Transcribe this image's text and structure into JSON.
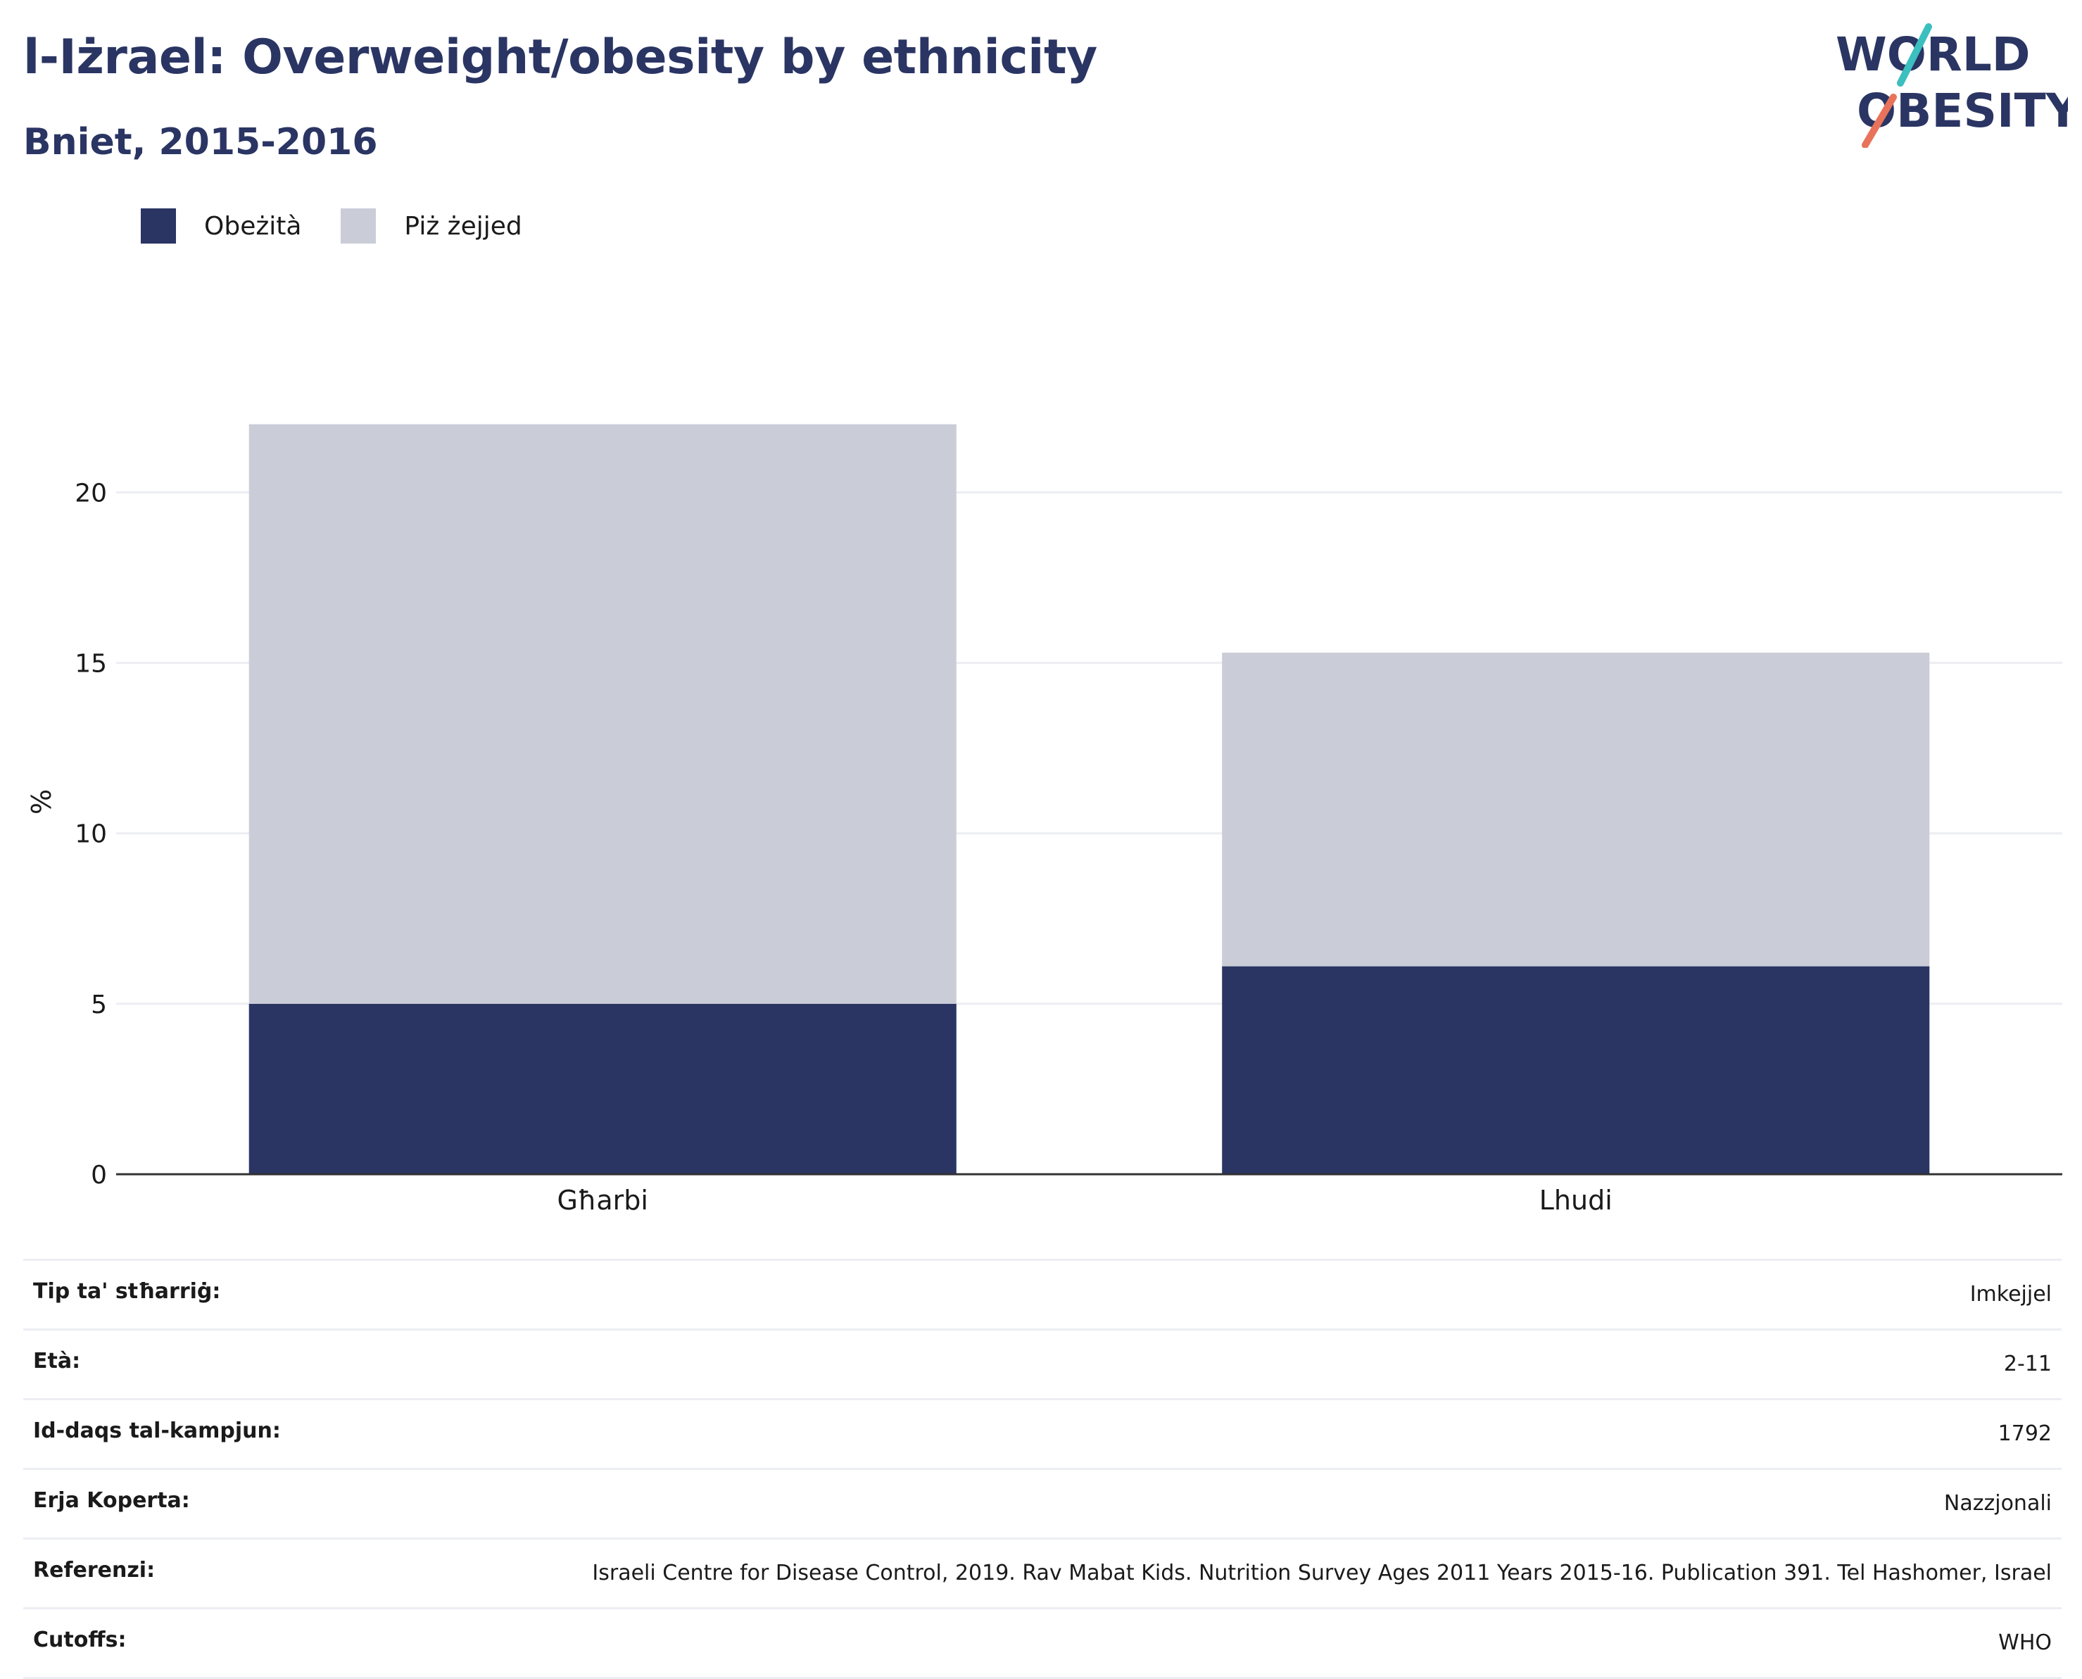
{
  "header": {
    "title": "l-Iżrael: Overweight/obesity by ethnicity",
    "subtitle": "Bniet, 2015-2016"
  },
  "logo": {
    "line1": "WORLD",
    "line2": "OBESITY"
  },
  "colors": {
    "obesity": "#2a3563",
    "overweight": "#cacdd8",
    "text": "#2a3563",
    "logo_teal": "#3bbfbf",
    "logo_coral": "#e8735a"
  },
  "chart_data": {
    "type": "bar",
    "stacked": true,
    "categories": [
      "Għarbi",
      "Lhudi"
    ],
    "series": [
      {
        "name": "Obeżità",
        "values": [
          5.0,
          6.1
        ]
      },
      {
        "name": "Piż żejjed",
        "values": [
          17.0,
          9.2
        ]
      }
    ],
    "ylabel": "%",
    "ylim": [
      0,
      23.5
    ],
    "yticks": [
      0,
      5,
      10,
      15,
      20
    ],
    "grid": true,
    "legend": "top-left"
  },
  "info": [
    {
      "label": "Tip ta' stħarriġ:",
      "value": "Imkejjel"
    },
    {
      "label": "Età:",
      "value": "2-11"
    },
    {
      "label": "Id-daqs tal-kampjun:",
      "value": "1792"
    },
    {
      "label": "Erja Koperta:",
      "value": "Nazzjonali"
    },
    {
      "label": "Referenzi:",
      "value": "Israeli Centre for Disease Control, 2019. Rav Mabat Kids. Nutrition Survey Ages 2011 Years 2015-16. Publication 391. Tel Hashomer, Israel"
    },
    {
      "label": "Cutoffs:",
      "value": "WHO"
    }
  ]
}
